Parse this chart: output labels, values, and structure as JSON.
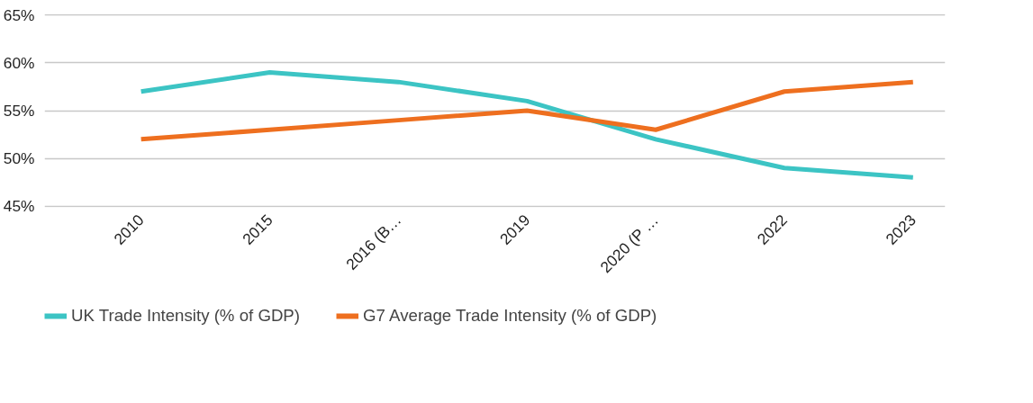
{
  "chart_data": {
    "type": "line",
    "categories": [
      "2010",
      "2015",
      "2016 (B…",
      "2019",
      "2020 (P …",
      "2022",
      "2023"
    ],
    "series": [
      {
        "name": "UK Trade Intensity (% of GDP)",
        "color": "#3cc4c4",
        "values": [
          57,
          59,
          58,
          56,
          52,
          49,
          48
        ]
      },
      {
        "name": "G7 Average Trade Intensity (% of GDP)",
        "color": "#ee6f1f",
        "values": [
          52,
          53,
          54,
          55,
          53,
          57,
          58
        ]
      }
    ],
    "ylim": [
      45,
      65
    ],
    "yticks": [
      {
        "value": 45,
        "label": "45%"
      },
      {
        "value": 50,
        "label": "50%"
      },
      {
        "value": 55,
        "label": "55%"
      },
      {
        "value": 60,
        "label": "60%"
      },
      {
        "value": 65,
        "label": "65%"
      }
    ],
    "grid": "y",
    "legend": "bottom",
    "marker": "none",
    "line_style": "solid"
  }
}
